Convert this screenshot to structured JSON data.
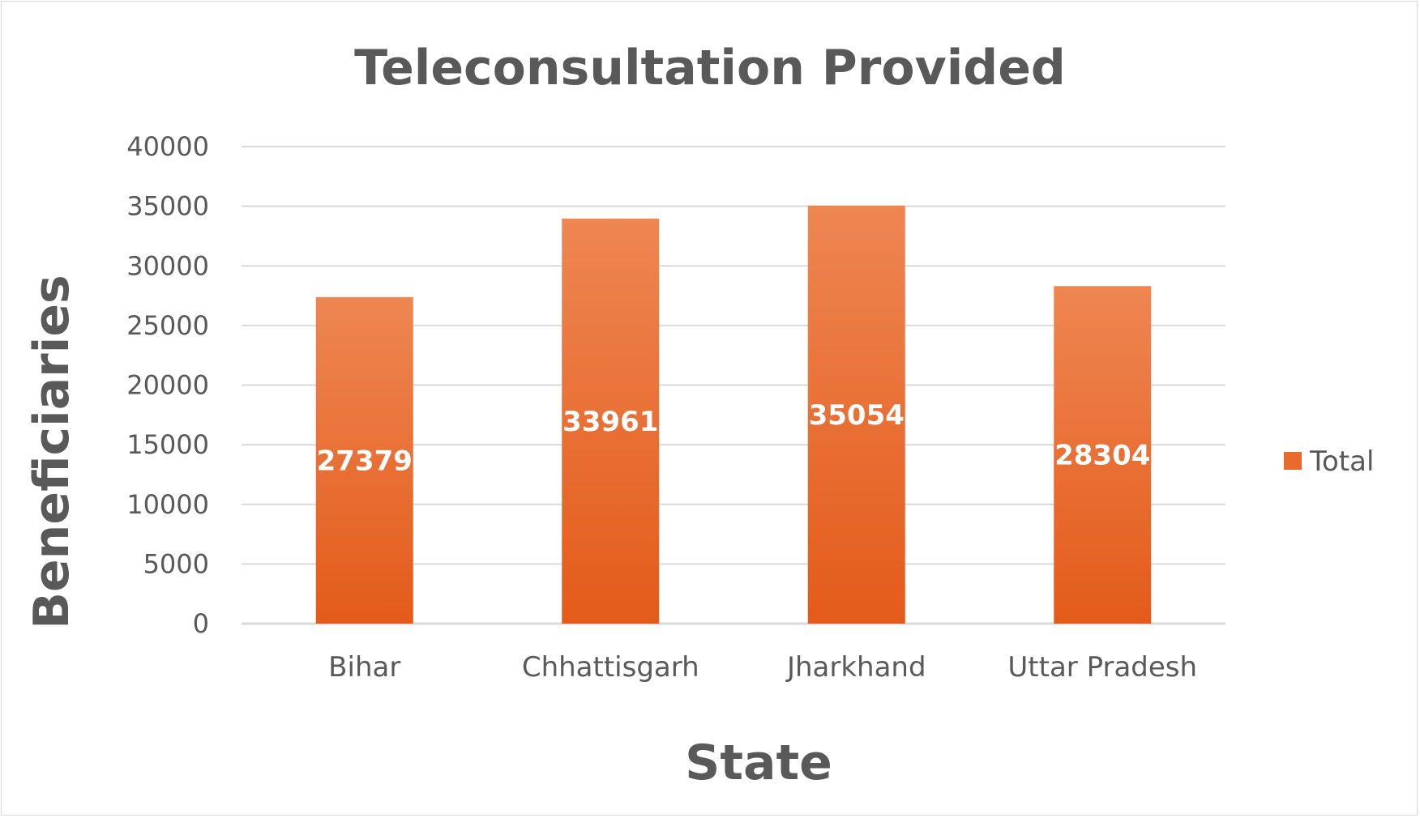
{
  "chart_data": {
    "type": "bar",
    "title": "Teleconsultation Provided",
    "xlabel": "State",
    "ylabel": "Beneficiaries",
    "categories": [
      "Bihar",
      "Chhattisgarh",
      "Jharkhand",
      "Uttar Pradesh"
    ],
    "series": [
      {
        "name": "Total",
        "values": [
          27379,
          33961,
          35054,
          28304
        ]
      }
    ],
    "data_labels": [
      "27379",
      "33961",
      "35054",
      "28304"
    ],
    "yticks": [
      "0",
      "5000",
      "10000",
      "15000",
      "20000",
      "25000",
      "30000",
      "35000",
      "40000"
    ],
    "ylim": [
      0,
      40000
    ],
    "grid": true,
    "legend_position": "right",
    "colors": {
      "bar_top": "#ee8652",
      "bar_bottom": "#e35b1a",
      "legend_swatch": "#e86a2c"
    }
  }
}
